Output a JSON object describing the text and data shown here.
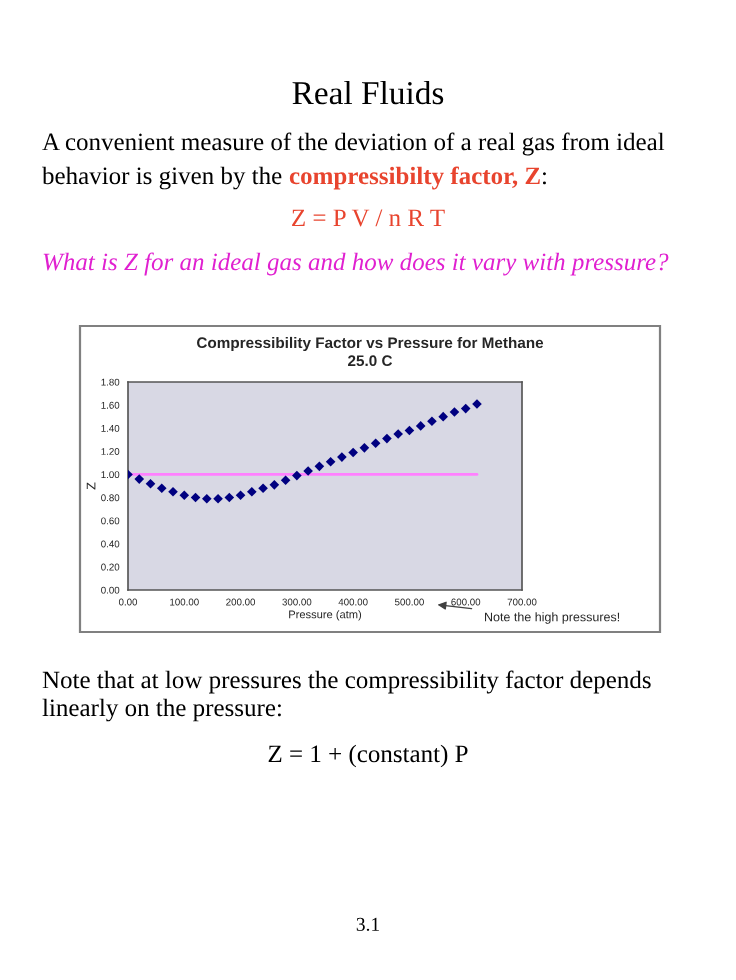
{
  "chart_data": {
    "type": "scatter",
    "title": "Compressibility Factor vs Pressure for Methane",
    "subtitle": "25.0 C",
    "xlabel": "Pressure (atm)",
    "ylabel": "Z",
    "annotations": [
      "Real Fluids",
      "A convenient measure of the deviation of a real gas from ideal",
      "behavior is given by the ",
      "compressibilty factor, Z",
      ":",
      "Z = P V / n R T",
      "What is Z for an ideal gas and how does it vary with pressure?",
      "Note the high pressures!",
      "Note that at low pressures the compressibility factor depends",
      "linearly on the pressure:",
      "Z = 1 + (constant) P",
      "3.1"
    ],
    "series": [
      {
        "color": "#000080",
        "marker": "diamond",
        "x": [
          0,
          20,
          40,
          60,
          80,
          100,
          120,
          140,
          160,
          180,
          200,
          220,
          240,
          260,
          280,
          300,
          320,
          340,
          360,
          380,
          400,
          420,
          440,
          460,
          480,
          500,
          520,
          540,
          560,
          580,
          600,
          620
        ],
        "values": [
          1.0,
          0.96,
          0.92,
          0.88,
          0.85,
          0.82,
          0.8,
          0.79,
          0.79,
          0.8,
          0.82,
          0.85,
          0.88,
          0.91,
          0.95,
          0.99,
          1.03,
          1.07,
          1.11,
          1.15,
          1.19,
          1.23,
          1.27,
          1.31,
          1.35,
          1.38,
          1.42,
          1.46,
          1.5,
          1.54,
          1.57,
          1.61
        ]
      },
      {
        "type": "line",
        "color": "#ff80ff",
        "x": [
          0,
          620
        ],
        "values": [
          1.0,
          1.0
        ]
      }
    ],
    "xlim": [
      0,
      700
    ],
    "xticks": [
      {
        "value": 0,
        "label": "0.00"
      },
      {
        "value": 100,
        "label": "100.00"
      },
      {
        "value": 200,
        "label": "200.00"
      },
      {
        "value": 300,
        "label": "300.00"
      },
      {
        "value": 400,
        "label": "400.00"
      },
      {
        "value": 500,
        "label": "500.00"
      },
      {
        "value": 600,
        "label": "600.00"
      },
      {
        "value": 700,
        "label": "700.00"
      }
    ],
    "ylim": [
      0,
      1.8
    ],
    "yticks": [
      {
        "value": 0,
        "label": "0.00"
      },
      {
        "value": 0.2,
        "label": "0.20"
      },
      {
        "value": 0.4,
        "label": "0.40"
      },
      {
        "value": 0.6,
        "label": "0.60"
      },
      {
        "value": 0.8,
        "label": "0.80"
      },
      {
        "value": 1.0,
        "label": "1.00"
      },
      {
        "value": 1.2,
        "label": "1.20"
      },
      {
        "value": 1.4,
        "label": "1.40"
      },
      {
        "value": 1.6,
        "label": "1.60"
      },
      {
        "value": 1.8,
        "label": "1.80"
      }
    ],
    "grid": false,
    "legend": false
  }
}
